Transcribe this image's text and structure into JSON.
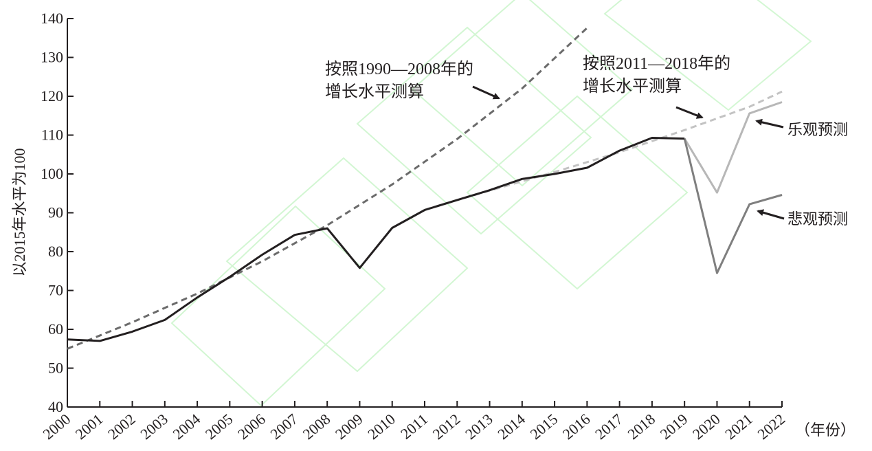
{
  "chart_data": {
    "type": "line",
    "title": "",
    "ylabel": "以2015年水平为100",
    "xunit": "（年份）",
    "ylim": [
      40,
      140
    ],
    "yticks": [
      40,
      50,
      60,
      70,
      80,
      90,
      100,
      110,
      120,
      130,
      140
    ],
    "x": [
      "2000",
      "2001",
      "2002",
      "2003",
      "2004",
      "2005",
      "2006",
      "2007",
      "2008",
      "2009",
      "2010",
      "2011",
      "2012",
      "2013",
      "2014",
      "2015",
      "2016",
      "2017",
      "2018",
      "2019",
      "2020",
      "2021",
      "2022"
    ],
    "series": [
      {
        "color": "#231f20",
        "style": "solid",
        "points": [
          [
            "2000",
            57.4
          ],
          [
            "2001",
            57.0
          ],
          [
            "2002",
            59.4
          ],
          [
            "2003",
            62.4
          ],
          [
            "2004",
            68.2
          ],
          [
            "2005",
            73.5
          ],
          [
            "2006",
            79.2
          ],
          [
            "2007",
            84.3
          ],
          [
            "2008",
            86.0
          ],
          [
            "2009",
            75.8
          ],
          [
            "2010",
            86.1
          ],
          [
            "2011",
            90.7
          ],
          [
            "2012",
            93.3
          ],
          [
            "2013",
            95.8
          ],
          [
            "2014",
            98.7
          ],
          [
            "2015",
            100.0
          ],
          [
            "2016",
            101.6
          ],
          [
            "2017",
            106.0
          ],
          [
            "2018",
            109.3
          ],
          [
            "2019",
            109.1
          ]
        ]
      },
      {
        "name": "乐观预测",
        "color": "#b7b7b7",
        "style": "solid",
        "points": [
          [
            "2019",
            109.1
          ],
          [
            "2020",
            95.2
          ],
          [
            "2021",
            115.6
          ],
          [
            "2022",
            118.5
          ]
        ]
      },
      {
        "name": "悲观预测",
        "color": "#7f7f7f",
        "style": "solid",
        "points": [
          [
            "2019",
            109.1
          ],
          [
            "2020",
            74.5
          ],
          [
            "2021",
            92.2
          ],
          [
            "2022",
            94.6
          ]
        ]
      },
      {
        "name": "按照1990—2008年的增长水平测算",
        "color": "#6b6b6b",
        "style": "dashed",
        "points": [
          [
            "2000",
            55.0
          ],
          [
            "2002",
            61.8
          ],
          [
            "2004",
            69.2
          ],
          [
            "2006",
            77.5
          ],
          [
            "2008",
            86.8
          ],
          [
            "2010",
            97.3
          ],
          [
            "2012",
            109.0
          ],
          [
            "2014",
            122.0
          ],
          [
            "2016",
            137.6
          ]
        ]
      },
      {
        "name": "按照2011—2018年的增长水平测算",
        "color": "#c3c3c3",
        "style": "dashed",
        "points": [
          [
            "2011",
            90.8
          ],
          [
            "2013",
            95.7
          ],
          [
            "2015",
            100.5
          ],
          [
            "2017",
            105.6
          ],
          [
            "2019",
            111.3
          ],
          [
            "2021",
            117.3
          ],
          [
            "2022",
            121.2
          ]
        ]
      }
    ],
    "annotations": {
      "trend1_line1": "按照1990—2008年的",
      "trend1_line2": "增长水平测算",
      "trend2_line1": "按照2011—2018年的",
      "trend2_line2": "增长水平测算",
      "optimistic": "乐观预测",
      "pessimistic": "悲观预测"
    },
    "grid": false,
    "legend": "inline"
  }
}
